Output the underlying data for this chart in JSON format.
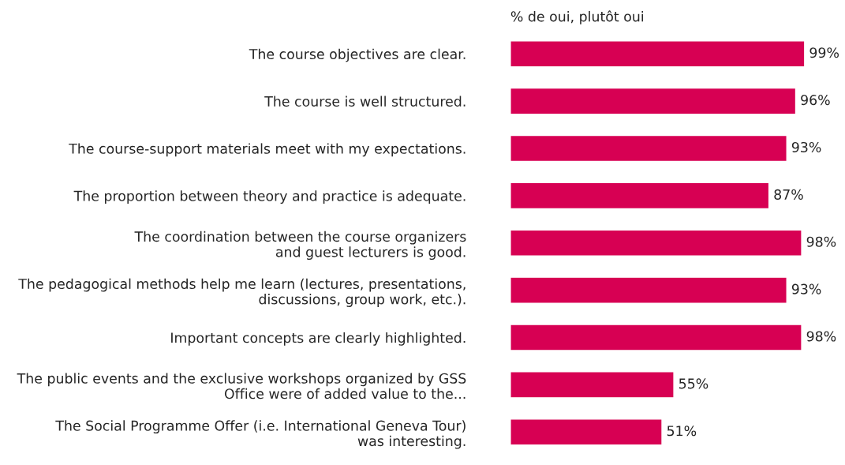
{
  "chart_data": {
    "type": "bar",
    "orientation": "horizontal",
    "title": "% de oui, plutôt oui",
    "categories": [
      "The course objectives are clear.",
      "The course is well structured.",
      "The course-support materials meet with my expectations.",
      "The proportion between theory and practice is adequate.",
      "The coordination between the course organizers\nand guest lecturers is good.",
      "The pedagogical methods help me learn (lectures, presentations,\ndiscussions, group work, etc.).",
      "Important concepts are clearly highlighted.",
      "The public events and the exclusive workshops organized by GSS\nOffice were of added value to the...",
      "The Social Programme Offer (i.e. International Geneva Tour)\nwas interesting."
    ],
    "values": [
      99,
      96,
      93,
      87,
      98,
      93,
      98,
      55,
      51
    ],
    "value_labels": [
      "99%",
      "96%",
      "93%",
      "87%",
      "98%",
      "93%",
      "98%",
      "55%",
      "51%"
    ],
    "color": "#d70053",
    "grid": false,
    "legend": false
  }
}
